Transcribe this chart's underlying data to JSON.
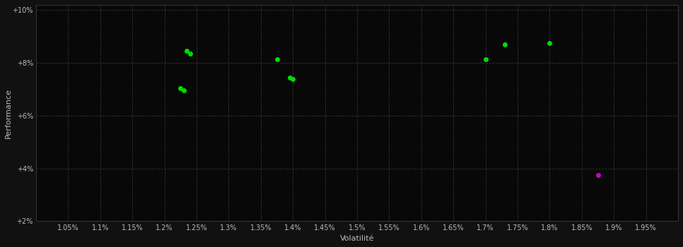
{
  "background_color": "#111111",
  "plot_bg_color": "#080808",
  "grid_color": "#333333",
  "text_color": "#bbbbbb",
  "xlabel": "Volatilité",
  "ylabel": "Performance",
  "x_min": 0.01,
  "x_max": 0.02,
  "y_min": 0.02,
  "y_max": 0.102,
  "xtick_vals": [
    0.0105,
    0.011,
    0.0115,
    0.012,
    0.0125,
    0.013,
    0.0135,
    0.014,
    0.0145,
    0.015,
    0.0155,
    0.016,
    0.0165,
    0.017,
    0.0175,
    0.018,
    0.0185,
    0.019,
    0.0195
  ],
  "xtick_labels": [
    "1.05%",
    "1.1%",
    "1.15%",
    "1.2%",
    "1.25%",
    "1.3%",
    "1.35%",
    "1.4%",
    "1.45%",
    "1.5%",
    "1.55%",
    "1.6%",
    "1.65%",
    "1.7%",
    "1.75%",
    "1.8%",
    "1.85%",
    "1.9%",
    "1.95%"
  ],
  "ytick_vals": [
    0.02,
    0.04,
    0.06,
    0.08,
    0.1
  ],
  "ytick_labels": [
    "+2%",
    "+4%",
    "+6%",
    "+8%",
    "+10%"
  ],
  "green_points_x": [
    0.01235,
    0.0124,
    0.01225,
    0.0123,
    0.01375,
    0.01395,
    0.014,
    0.017,
    0.0173,
    0.018
  ],
  "green_points_y": [
    0.0845,
    0.0835,
    0.0705,
    0.0695,
    0.0815,
    0.0745,
    0.074,
    0.0815,
    0.087,
    0.0875
  ],
  "magenta_points_x": [
    0.01875
  ],
  "magenta_points_y": [
    0.0375
  ],
  "green_color": "#00dd00",
  "magenta_color": "#cc00cc",
  "marker_size": 5
}
